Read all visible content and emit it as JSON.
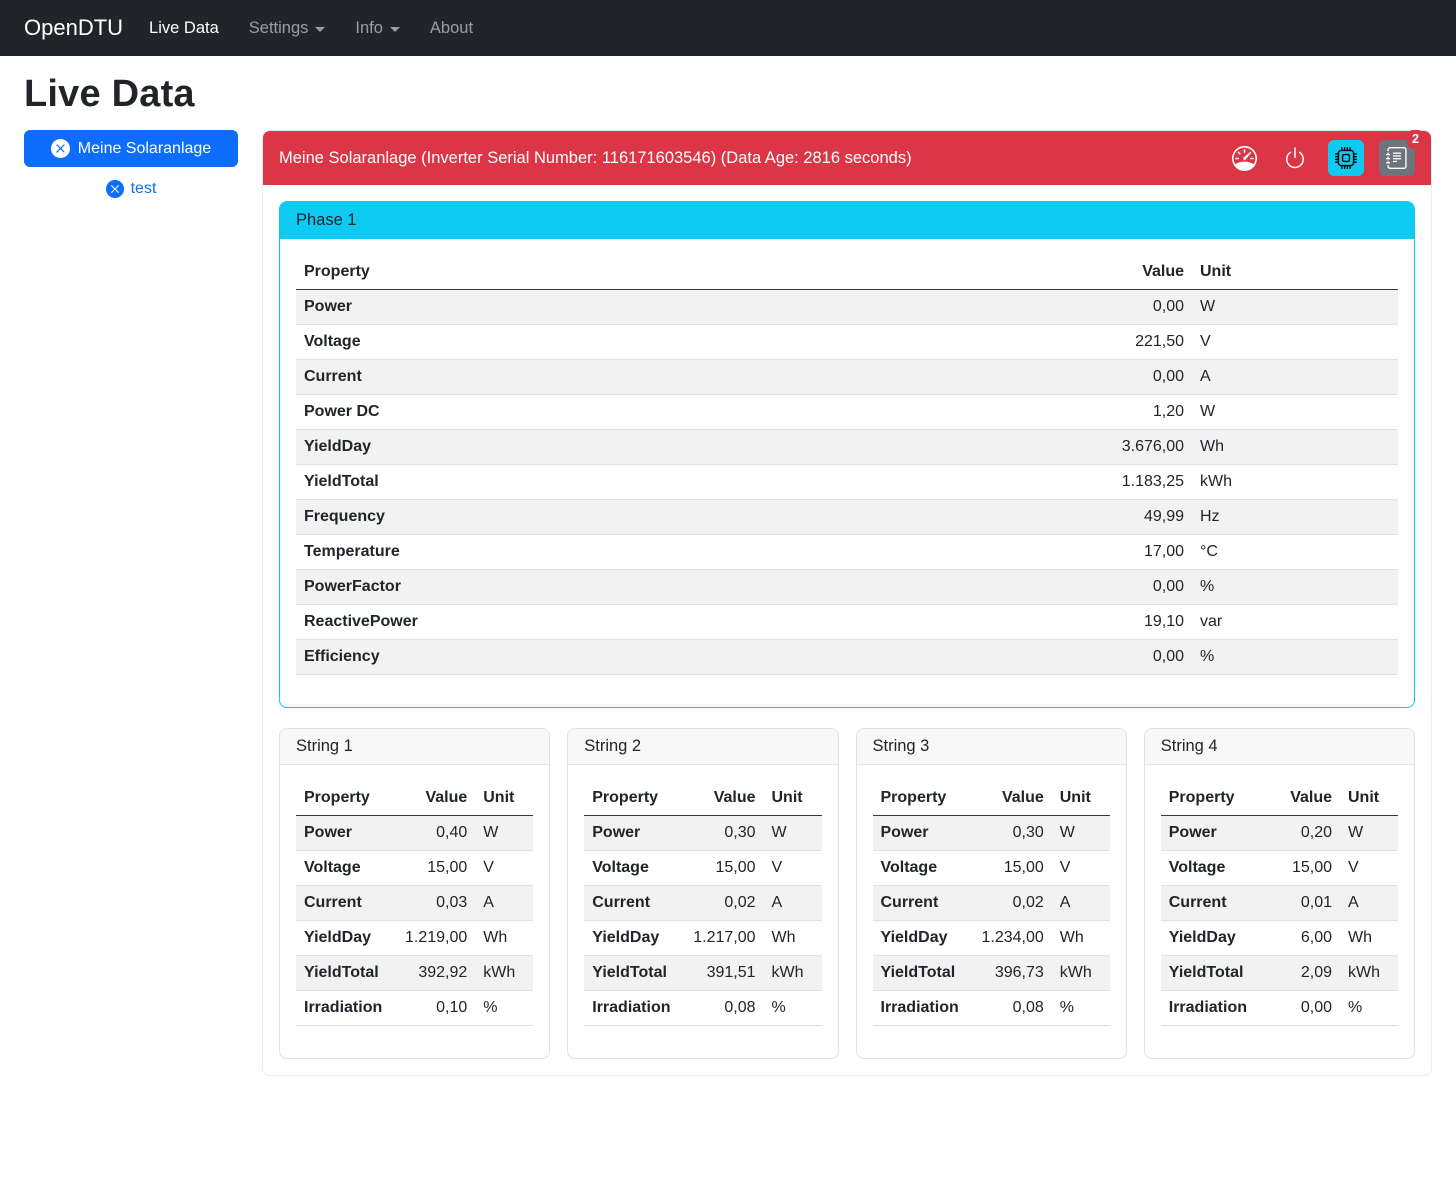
{
  "colors": {
    "primary": "#0d6efd",
    "danger": "#dc3545",
    "info": "#0dcaf0",
    "secondary": "#6c757d",
    "navbar_bg": "#212529"
  },
  "navbar": {
    "brand": "OpenDTU",
    "items": [
      {
        "label": "Live Data",
        "active": true,
        "dropdown": false
      },
      {
        "label": "Settings",
        "active": false,
        "dropdown": true
      },
      {
        "label": "Info",
        "active": false,
        "dropdown": true
      },
      {
        "label": "About",
        "active": false,
        "dropdown": false
      }
    ]
  },
  "page_title": "Live Data",
  "sidebar": {
    "selected_inverter": "Meine Solaranlage",
    "other_inverter": "test",
    "selected_icon": "x-circle-icon",
    "other_icon": "x-circle-icon"
  },
  "inverter_card": {
    "header": "Meine Solaranlage (Inverter Serial Number: 116171603546) (Data Age: 2816 seconds)",
    "actions": [
      {
        "icon": "speedometer-icon"
      },
      {
        "icon": "power-icon"
      },
      {
        "icon": "cpu-icon"
      },
      {
        "icon": "journal-text-icon",
        "badge_count": "2"
      }
    ]
  },
  "table_columns": {
    "property": "Property",
    "value": "Value",
    "unit": "Unit"
  },
  "chart_data": {
    "type": "table",
    "phase_card": {
      "title": "Phase 1",
      "rows": [
        {
          "property": "Power",
          "value": "0,00",
          "unit": "W"
        },
        {
          "property": "Voltage",
          "value": "221,50",
          "unit": "V"
        },
        {
          "property": "Current",
          "value": "0,00",
          "unit": "A"
        },
        {
          "property": "Power DC",
          "value": "1,20",
          "unit": "W"
        },
        {
          "property": "YieldDay",
          "value": "3.676,00",
          "unit": "Wh"
        },
        {
          "property": "YieldTotal",
          "value": "1.183,25",
          "unit": "kWh"
        },
        {
          "property": "Frequency",
          "value": "49,99",
          "unit": "Hz"
        },
        {
          "property": "Temperature",
          "value": "17,00",
          "unit": "°C"
        },
        {
          "property": "PowerFactor",
          "value": "0,00",
          "unit": "%"
        },
        {
          "property": "ReactivePower",
          "value": "19,10",
          "unit": "var"
        },
        {
          "property": "Efficiency",
          "value": "0,00",
          "unit": "%"
        }
      ]
    },
    "string_cards": [
      {
        "title": "String 1",
        "rows": [
          {
            "property": "Power",
            "value": "0,40",
            "unit": "W"
          },
          {
            "property": "Voltage",
            "value": "15,00",
            "unit": "V"
          },
          {
            "property": "Current",
            "value": "0,03",
            "unit": "A"
          },
          {
            "property": "YieldDay",
            "value": "1.219,00",
            "unit": "Wh"
          },
          {
            "property": "YieldTotal",
            "value": "392,92",
            "unit": "kWh"
          },
          {
            "property": "Irradiation",
            "value": "0,10",
            "unit": "%"
          }
        ]
      },
      {
        "title": "String 2",
        "rows": [
          {
            "property": "Power",
            "value": "0,30",
            "unit": "W"
          },
          {
            "property": "Voltage",
            "value": "15,00",
            "unit": "V"
          },
          {
            "property": "Current",
            "value": "0,02",
            "unit": "A"
          },
          {
            "property": "YieldDay",
            "value": "1.217,00",
            "unit": "Wh"
          },
          {
            "property": "YieldTotal",
            "value": "391,51",
            "unit": "kWh"
          },
          {
            "property": "Irradiation",
            "value": "0,08",
            "unit": "%"
          }
        ]
      },
      {
        "title": "String 3",
        "rows": [
          {
            "property": "Power",
            "value": "0,30",
            "unit": "W"
          },
          {
            "property": "Voltage",
            "value": "15,00",
            "unit": "V"
          },
          {
            "property": "Current",
            "value": "0,02",
            "unit": "A"
          },
          {
            "property": "YieldDay",
            "value": "1.234,00",
            "unit": "Wh"
          },
          {
            "property": "YieldTotal",
            "value": "396,73",
            "unit": "kWh"
          },
          {
            "property": "Irradiation",
            "value": "0,08",
            "unit": "%"
          }
        ]
      },
      {
        "title": "String 4",
        "rows": [
          {
            "property": "Power",
            "value": "0,20",
            "unit": "W"
          },
          {
            "property": "Voltage",
            "value": "15,00",
            "unit": "V"
          },
          {
            "property": "Current",
            "value": "0,01",
            "unit": "A"
          },
          {
            "property": "YieldDay",
            "value": "6,00",
            "unit": "Wh"
          },
          {
            "property": "YieldTotal",
            "value": "2,09",
            "unit": "kWh"
          },
          {
            "property": "Irradiation",
            "value": "0,00",
            "unit": "%"
          }
        ]
      }
    ]
  }
}
